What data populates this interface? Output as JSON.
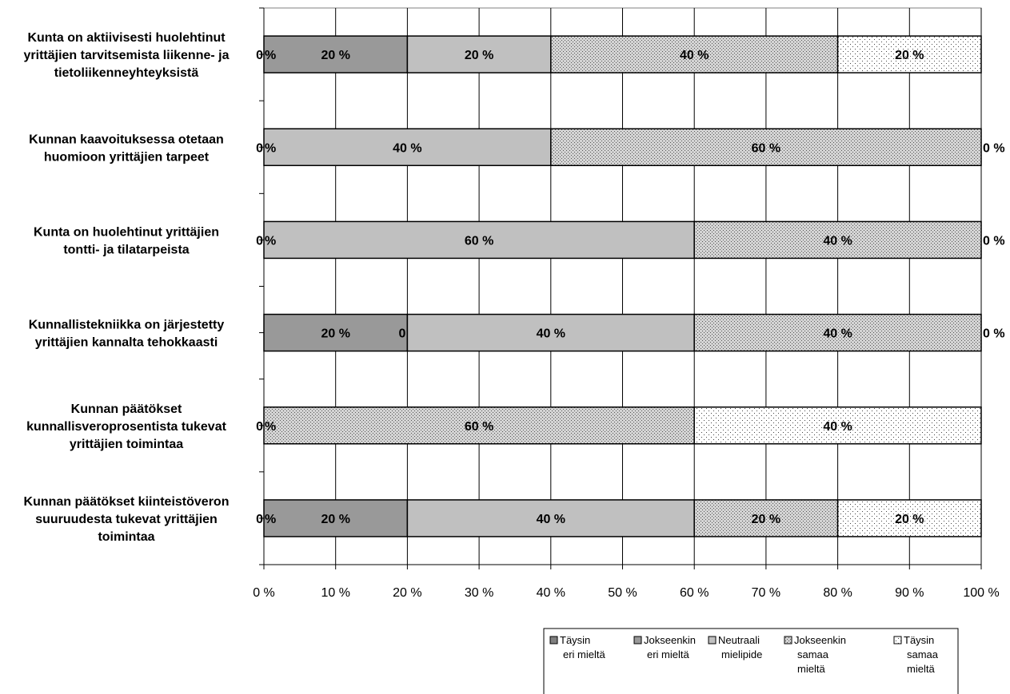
{
  "chart_data": {
    "type": "bar",
    "orientation": "horizontal",
    "stacked": true,
    "percent_stacked": true,
    "categories": [
      "Kunta on aktiivisesti huolehtinut yrittäjien tarvitsemista liikenne- ja tietoliikenneyhteyksistä",
      "Kunnan kaavoituksessa otetaan huomioon yrittäjien tarpeet",
      "Kunta on huolehtinut yrittäjien tontti- ja tilatarpeista",
      "Kunnallistekniikka on järjestetty yrittäjien kannalta tehokkaasti",
      "Kunnan päätökset kunnallisveroprosentista tukevat yrittäjien toimintaa",
      "Kunnan päätökset kiinteistöveron suuruudesta tukevat yrittäjien toimintaa"
    ],
    "category_lines": [
      [
        "Kunta on aktiivisesti huolehtinut",
        "yrittäjien tarvitsemista liikenne- ja",
        "tietoliikenneyhteyksistä"
      ],
      [
        "Kunnan kaavoituksessa otetaan",
        "huomioon yrittäjien tarpeet"
      ],
      [
        "Kunta on huolehtinut yrittäjien",
        "tontti- ja tilatarpeista"
      ],
      [
        "Kunnallistekniikka on järjestetty",
        "yrittäjien kannalta tehokkaasti"
      ],
      [
        "Kunnan päätökset",
        "kunnallisveroprosentista tukevat",
        "yrittäjien toimintaa"
      ],
      [
        "Kunnan päätökset kiinteistöveron",
        "suuruudesta tukevat yrittäjien",
        "toimintaa"
      ]
    ],
    "series": [
      {
        "name": "Täysin eri mieltä",
        "legend_lines": [
          "Täysin",
          "eri mieltä"
        ],
        "color": "#808080",
        "pattern": "solid",
        "values": [
          0,
          0,
          0,
          0,
          0,
          0
        ],
        "labels": [
          "0 %",
          "0 %",
          "0 %",
          "",
          "0 %",
          "0 %"
        ]
      },
      {
        "name": "Jokseenkin eri mieltä",
        "legend_lines": [
          "Jokseenkin",
          "eri mieltä"
        ],
        "color": "#999999",
        "pattern": "solid",
        "values": [
          20,
          0,
          0,
          20,
          0,
          20
        ],
        "labels": [
          "20 %",
          "",
          "",
          "20 %",
          "",
          "20 %"
        ]
      },
      {
        "name": "Neutraali mielipide",
        "legend_lines": [
          "Neutraali",
          "mielipide"
        ],
        "color": "#c0c0c0",
        "pattern": "solid",
        "values": [
          20,
          40,
          60,
          40,
          0,
          40
        ],
        "labels": [
          "20 %",
          "40 %",
          "60 %",
          "40 %",
          "",
          "40 %"
        ]
      },
      {
        "name": "Jokseenkin samaa mieltä",
        "legend_lines": [
          "Jokseenkin",
          "samaa",
          "mieltä"
        ],
        "color": "#d9d9d9",
        "pattern": "dense-dots",
        "values": [
          40,
          60,
          40,
          40,
          60,
          20
        ],
        "labels": [
          "40 %",
          "60 %",
          "40 %",
          "40 %",
          "60 %",
          "20 %"
        ]
      },
      {
        "name": "Täysin samaa mieltä",
        "legend_lines": [
          "Täysin",
          "samaa",
          "mieltä"
        ],
        "color": "#ffffff",
        "pattern": "sparse-dots",
        "values": [
          20,
          0,
          0,
          0,
          40,
          20
        ],
        "labels": [
          "20 %",
          "0 %",
          "0 %",
          "0 %",
          "40 %",
          "20 %"
        ]
      }
    ],
    "extra_labels": [
      {
        "row": 3,
        "text": "0",
        "at_value": 20
      }
    ],
    "xlim": [
      0,
      100
    ],
    "xticks": [
      "0 %",
      "10 %",
      "20 %",
      "30 %",
      "40 %",
      "50 %",
      "60 %",
      "70 %",
      "80 %",
      "90 %",
      "100 %"
    ],
    "grid": true,
    "legend_position": "bottom-right",
    "title": "",
    "xlabel": "",
    "ylabel": ""
  }
}
